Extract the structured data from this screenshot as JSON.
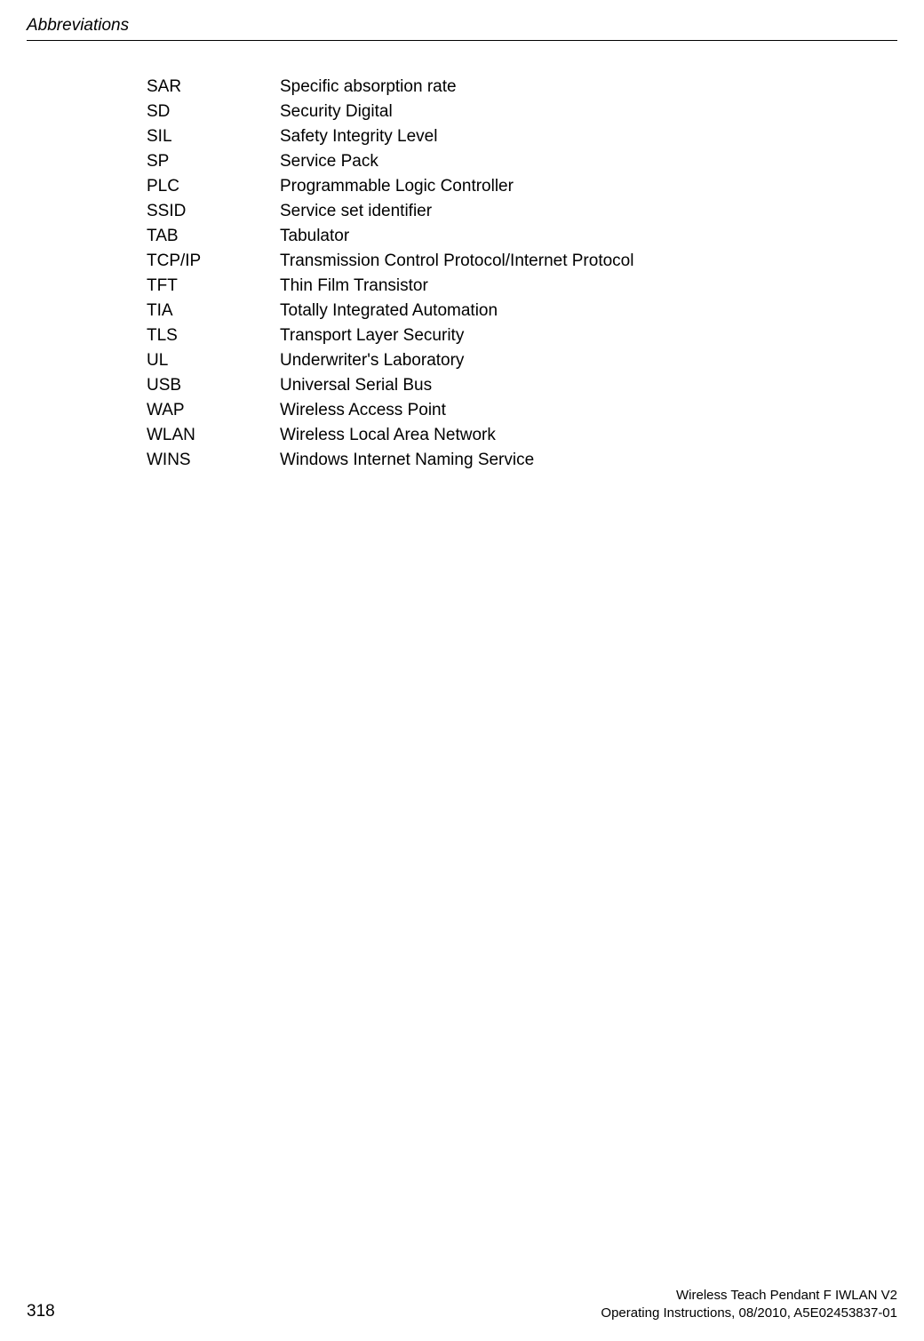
{
  "header": {
    "title": "Abbreviations"
  },
  "abbreviations": [
    {
      "key": "SAR",
      "value": "Specific absorption rate"
    },
    {
      "key": "SD",
      "value": "Security Digital"
    },
    {
      "key": "SIL",
      "value": "Safety Integrity Level"
    },
    {
      "key": "SP",
      "value": "Service Pack"
    },
    {
      "key": "PLC",
      "value": "Programmable Logic Controller"
    },
    {
      "key": "SSID",
      "value": "Service set identifier"
    },
    {
      "key": "TAB",
      "value": "Tabulator"
    },
    {
      "key": "TCP/IP",
      "value": "Transmission Control Protocol/Internet Protocol"
    },
    {
      "key": "TFT",
      "value": "Thin Film Transistor"
    },
    {
      "key": "TIA",
      "value": "Totally Integrated Automation"
    },
    {
      "key": "TLS",
      "value": "Transport Layer Security"
    },
    {
      "key": "UL",
      "value": "Underwriter's Laboratory"
    },
    {
      "key": "USB",
      "value": "Universal Serial Bus"
    },
    {
      "key": "WAP",
      "value": "Wireless Access Point"
    },
    {
      "key": "WLAN",
      "value": "Wireless Local Area Network"
    },
    {
      "key": "WINS",
      "value": "Windows Internet Naming Service"
    }
  ],
  "footer": {
    "page_number": "318",
    "doc_title": "Wireless Teach Pendant F IWLAN V2",
    "doc_info": "Operating Instructions, 08/2010, A5E02453837-01"
  }
}
